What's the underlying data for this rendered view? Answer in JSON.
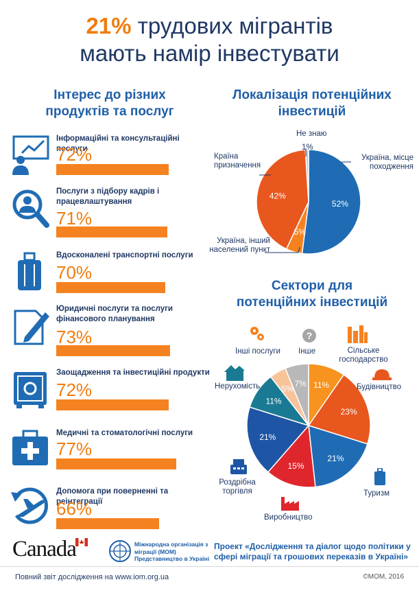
{
  "title": {
    "highlight": "21%",
    "line1_rest": "трудових мігрантів",
    "line2": "мають намір інвестувати"
  },
  "left_section": {
    "heading_line1": "Інтерес до різних",
    "heading_line2": "продуктів та послуг",
    "items": [
      {
        "label": "Інформаційні та консультаційні послуги",
        "value_text": "72%",
        "value": 72,
        "icon": "presentation-board-icon"
      },
      {
        "label": "Послуги з підбору кадрів і працевлаштування",
        "value_text": "71%",
        "value": 71,
        "icon": "person-search-icon"
      },
      {
        "label": "Вдосконалені транспортні послуги",
        "value_text": "70%",
        "value": 70,
        "icon": "suitcase-icon"
      },
      {
        "label": "Юридичні послуги та послуги фінансового планування",
        "value_text": "73%",
        "value": 73,
        "icon": "document-pen-icon"
      },
      {
        "label": "Заощадження та інвестиційні продукти",
        "value_text": "72%",
        "value": 72,
        "icon": "safe-icon"
      },
      {
        "label": "Медичні та стоматологічні послуги",
        "value_text": "77%",
        "value": 77,
        "icon": "medical-kit-icon"
      },
      {
        "label": "Допомога при поверненні та реінтеграції",
        "value_text": "66%",
        "value": 66,
        "icon": "plane-return-icon"
      }
    ]
  },
  "chart_data": [
    {
      "type": "pie",
      "title": "Локалізація потенційних інвестицій",
      "slices": [
        {
          "name": "Україна, місце походження",
          "value": 52,
          "label": "52%",
          "color": "#1f6cb4"
        },
        {
          "name": "Україна, інший населений пункт",
          "value": 5,
          "label": "5%",
          "color": "#f58220"
        },
        {
          "name": "Країна призначення",
          "value": 42,
          "label": "42%",
          "color": "#e8571e"
        },
        {
          "name": "Не знаю",
          "value": 1,
          "label": "1%",
          "color": "#bfc9d6"
        }
      ]
    },
    {
      "type": "pie",
      "title": "Сектори для потенційних інвестицій",
      "slices": [
        {
          "name": "Сільське господарство",
          "value": 11,
          "label": "11%",
          "color": "#f7931e"
        },
        {
          "name": "Будівництво",
          "value": 23,
          "label": "23%",
          "color": "#e8571e"
        },
        {
          "name": "Туризм",
          "value": 21,
          "label": "21%",
          "color": "#1f6cb4"
        },
        {
          "name": "Виробництво",
          "value": 15,
          "label": "15%",
          "color": "#e0262d"
        },
        {
          "name": "Роздрібна торгівля",
          "value": 21,
          "label": "21%",
          "color": "#1e56a5"
        },
        {
          "name": "Нерухомість",
          "value": 11,
          "label": "11%",
          "color": "#1a7a93"
        },
        {
          "name": "Інші послуги",
          "value": 5,
          "label": "5%",
          "color": "#f9c39a"
        },
        {
          "name": "Інше",
          "value": 7,
          "label": "7%",
          "color": "#b8b8b8"
        }
      ]
    }
  ],
  "right_section": {
    "pie1_heading_line1": "Локалізація потенційних",
    "pie1_heading_line2": "інвестицій",
    "pie1_labels": {
      "dont_know": "Не знаю",
      "dont_know_pct": "1%",
      "origin_line1": "Україна, місце",
      "origin_line2": "походження",
      "dest_line1": "Країна",
      "dest_line2": "призначення",
      "other_line1": "Україна, інший",
      "other_line2": "населений пункт"
    },
    "pie2_heading_line1": "Сектори для",
    "pie2_heading_line2": "потенційних інвестицій",
    "pie2_labels": {
      "other_services": "Інші послуги",
      "other": "Інше",
      "agri_line1": "Сільське",
      "agri_line2": "господарство",
      "construction": "Будівництво",
      "real_estate": "Нерухомість",
      "retail_line1": "Роздрібна",
      "retail_line2": "торгівля",
      "tourism": "Туризм",
      "manufacturing": "Виробництво"
    }
  },
  "footer": {
    "canada": "Canada",
    "iom_text": "Міжнародна організація з міграції (МОМ) Представництво в Україні",
    "project": "Проект «Дослідження та діалог щодо політики у сфері міграції та грошових переказів в Україні»",
    "report": "Повний звіт дослідження на www.iom.org.ua",
    "copyright": "©МОМ, 2016"
  },
  "colors": {
    "orange": "#f58220",
    "navy": "#1f3864",
    "blue": "#1f5fa8"
  }
}
